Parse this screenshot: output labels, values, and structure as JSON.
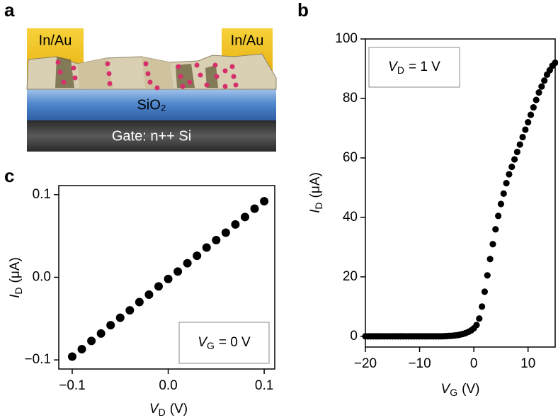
{
  "panel_labels": [
    "a",
    "b",
    "c"
  ],
  "diagram": {
    "contacts": [
      "In/Au",
      "In/Au"
    ],
    "oxide": "SiO₂",
    "gate": "Gate: n++ Si"
  },
  "chart_data": [
    {
      "type": "scatter",
      "color": "#000000",
      "x_label": {
        "symbol": "V",
        "subscript": "G",
        "unit": "(V)"
      },
      "y_label": {
        "symbol": "I",
        "subscript": "D",
        "unit": "(μA)"
      },
      "annotation": {
        "symbol": "V",
        "subscript": "D",
        "text": "= 1 V"
      },
      "xlim": [
        -20,
        15
      ],
      "ylim": [
        -3.6,
        100
      ],
      "xticks": [
        {
          "value": -20,
          "label": "−20"
        },
        {
          "value": -10,
          "label": "−10"
        },
        0,
        10
      ],
      "yticks": [
        0,
        20,
        40,
        60,
        80,
        100
      ],
      "x": [
        -20,
        -19.5,
        -19,
        -18.5,
        -18,
        -17.5,
        -17,
        -16.5,
        -16,
        -15.5,
        -15,
        -14.5,
        -14,
        -13.5,
        -13,
        -12.5,
        -12,
        -11.5,
        -11,
        -10.5,
        -10,
        -9.5,
        -9,
        -8.5,
        -8,
        -7.5,
        -7,
        -6.5,
        -6,
        -5.5,
        -5,
        -4.5,
        -4,
        -3.5,
        -3,
        -2.5,
        -2,
        -1.5,
        -1,
        -0.5,
        0,
        0.5,
        1,
        1.5,
        2,
        2.5,
        3,
        3.5,
        4,
        4.5,
        5,
        5.5,
        6,
        6.5,
        7,
        7.5,
        8,
        8.5,
        9,
        9.5,
        10,
        10.5,
        11,
        11.5,
        12,
        12.5,
        13,
        13.5,
        14,
        14.5,
        15
      ],
      "values": [
        0,
        0,
        0,
        0,
        0,
        0,
        0,
        0,
        0,
        0,
        0,
        0,
        0,
        0,
        0,
        0,
        0,
        0,
        0,
        0,
        0,
        0,
        0,
        0,
        0,
        0,
        0,
        0,
        0,
        0.05,
        0.1,
        0.15,
        0.2,
        0.3,
        0.4,
        0.6,
        0.8,
        1.1,
        1.5,
        2,
        2.7,
        3.8,
        6,
        10,
        15,
        20.5,
        26,
        31,
        36,
        40.5,
        44.5,
        48,
        51.5,
        54.5,
        57,
        59.5,
        62,
        64.5,
        67,
        69.5,
        72,
        74.5,
        77,
        79.5,
        82,
        84,
        86,
        88,
        89.5,
        91,
        92
      ]
    },
    {
      "type": "scatter",
      "color": "#000000",
      "x_label": {
        "symbol": "V",
        "subscript": "D",
        "unit": "(V)"
      },
      "y_label": {
        "symbol": "I",
        "subscript": "D",
        "unit": "(μA)"
      },
      "annotation": {
        "symbol": "V",
        "subscript": "G",
        "text": "= 0 V"
      },
      "xlim": [
        -0.114,
        0.111
      ],
      "ylim": [
        -0.111,
        0.111
      ],
      "xticks": [
        {
          "value": -0.1,
          "label": "−0.1"
        },
        {
          "value": 0,
          "label": "0.0"
        },
        0.1
      ],
      "yticks": [
        {
          "value": -0.1,
          "label": "−0.1"
        },
        {
          "value": 0,
          "label": "0.0"
        },
        0.1
      ],
      "x": [
        -0.1,
        -0.09,
        -0.08,
        -0.07,
        -0.06,
        -0.05,
        -0.04,
        -0.03,
        -0.02,
        -0.01,
        0,
        0.01,
        0.02,
        0.03,
        0.04,
        0.05,
        0.06,
        0.07,
        0.08,
        0.09,
        0.1
      ],
      "values": [
        -0.096,
        -0.087,
        -0.077,
        -0.068,
        -0.058,
        -0.049,
        -0.04,
        -0.03,
        -0.021,
        -0.011,
        -0.002,
        0.007,
        0.017,
        0.026,
        0.036,
        0.045,
        0.054,
        0.064,
        0.073,
        0.083,
        0.092
      ]
    }
  ]
}
